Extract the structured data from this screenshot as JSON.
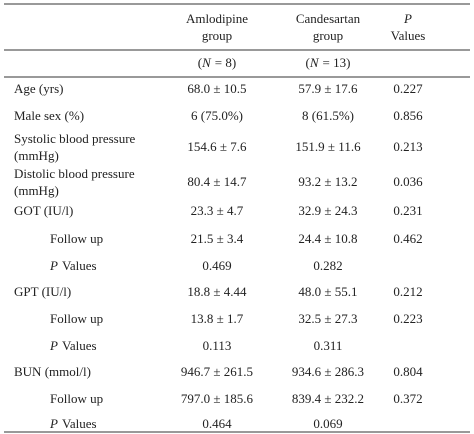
{
  "header": {
    "columns": [
      {
        "line1": "Amlodipine",
        "line2": "group"
      },
      {
        "line1": "Candesartan",
        "line2": "group"
      },
      {
        "line1": "P",
        "line2": "Values"
      }
    ],
    "n_row": [
      {
        "open": "(",
        "var": "N",
        "rest": "= 8)"
      },
      {
        "open": "(",
        "var": "N",
        "rest": "= 13)"
      }
    ]
  },
  "table": {
    "rows": [
      {
        "label": "Age (yrs)",
        "values": [
          "68.0 ± 10.5",
          "57.9 ± 17.6",
          "0.227"
        ]
      },
      {
        "label": "Male sex (%)",
        "values": [
          "6 (75.0%)",
          "8 (61.5%)",
          "0.856"
        ]
      },
      {
        "label": [
          "Systolic blood pressure",
          "(mmHg)"
        ],
        "values": [
          "154.6 ± 7.6",
          "151.9 ± 11.6",
          "0.213"
        ]
      },
      {
        "label": [
          "Distolic blood pressure",
          "(mmHg)"
        ],
        "values": [
          "80.4 ± 14.7",
          "93.2 ± 13.2",
          "0.036"
        ]
      },
      {
        "label": "GOT (IU/l)",
        "values": [
          "23.3 ± 4.7",
          "32.9 ± 24.3",
          "0.231"
        ]
      },
      {
        "label": "Follow up",
        "values": [
          "21.5 ± 3.4",
          "24.4 ± 10.8",
          "0.462"
        ]
      },
      {
        "label": {
          "italic": "P",
          "text": "Values"
        },
        "values": [
          "0.469",
          "0.282"
        ]
      },
      {
        "label": "GPT (IU/l)",
        "values": [
          "18.8 ± 4.44",
          "48.0 ± 55.1",
          "0.212"
        ]
      },
      {
        "label": "Follow up",
        "values": [
          "13.8 ± 1.7",
          "32.5 ± 27.3",
          "0.223"
        ]
      },
      {
        "label": {
          "italic": "P",
          "text": "Values"
        },
        "values": [
          "0.113",
          "0.311"
        ]
      },
      {
        "label": "BUN (mmol/l)",
        "values": [
          "946.7 ± 261.5",
          "934.6 ± 286.3",
          "0.804"
        ]
      },
      {
        "label": "Follow up",
        "values": [
          "797.0 ± 185.6",
          "839.4 ± 232.2",
          "0.372"
        ]
      },
      {
        "label": {
          "italic": "P",
          "text": "Values"
        },
        "values": [
          "0.464",
          "0.069"
        ]
      }
    ]
  }
}
